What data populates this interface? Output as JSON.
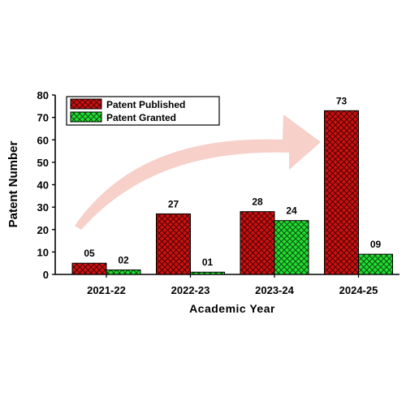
{
  "chart_data": {
    "type": "bar",
    "title": "",
    "xlabel": "Academic Year",
    "ylabel": "Patent Number",
    "categories": [
      "2021-22",
      "2022-23",
      "2023-24",
      "2024-25"
    ],
    "ylim": [
      0,
      80
    ],
    "yticks": [
      0,
      10,
      20,
      30,
      40,
      50,
      60,
      70,
      80
    ],
    "grid": false,
    "legend_position": "top-left",
    "series": [
      {
        "name": "Patent Published",
        "values": [
          5,
          27,
          28,
          73
        ],
        "labels": [
          "05",
          "27",
          "28",
          "73"
        ],
        "color": "#cc1111",
        "pattern": "crosshatch"
      },
      {
        "name": "Patent Granted",
        "values": [
          2,
          1,
          24,
          9
        ],
        "labels": [
          "02",
          "01",
          "24",
          "09"
        ],
        "color": "#22dd33",
        "pattern": "crosshatch"
      }
    ],
    "annotations": [
      {
        "type": "growth-arrow",
        "color": "#f5c8c0"
      }
    ]
  }
}
